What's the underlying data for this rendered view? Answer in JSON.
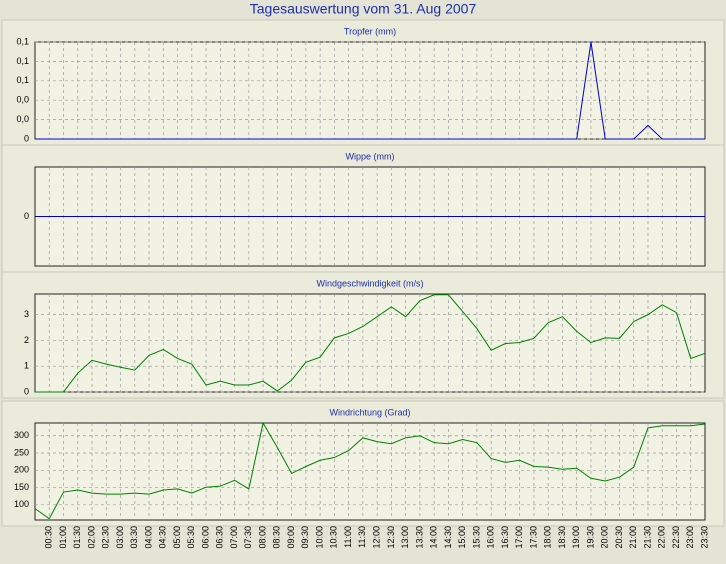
{
  "title": "Tagesauswertung vom 31. Aug 2007",
  "chart_data": [
    {
      "type": "line",
      "title": "Tropfer (mm)",
      "color": "#0000cc",
      "grid": true,
      "ylim": [
        0,
        0.1
      ],
      "yticks": [
        0,
        {
          "value": 0.02,
          "label": "0,0"
        },
        {
          "value": 0.04,
          "label": "0,0"
        },
        {
          "value": 0.06,
          "label": "0,1"
        },
        {
          "value": 0.08,
          "label": "0,1"
        },
        {
          "value": 0.1,
          "label": "0,1"
        }
      ],
      "values": [
        0,
        0,
        0,
        0,
        0,
        0,
        0,
        0,
        0,
        0,
        0,
        0,
        0,
        0,
        0,
        0,
        0,
        0,
        0,
        0,
        0,
        0,
        0,
        0,
        0,
        0,
        0,
        0,
        0,
        0,
        0,
        0,
        0,
        0,
        0,
        0,
        0,
        0,
        0,
        0.1,
        0,
        0,
        0,
        0.014,
        0,
        0,
        0,
        0
      ]
    },
    {
      "type": "line",
      "title": "Wippe (mm)",
      "color": "#0000cc",
      "grid": true,
      "ylim": [
        -1,
        1
      ],
      "yticks": [
        0
      ],
      "values": [
        0,
        0,
        0,
        0,
        0,
        0,
        0,
        0,
        0,
        0,
        0,
        0,
        0,
        0,
        0,
        0,
        0,
        0,
        0,
        0,
        0,
        0,
        0,
        0,
        0,
        0,
        0,
        0,
        0,
        0,
        0,
        0,
        0,
        0,
        0,
        0,
        0,
        0,
        0,
        0,
        0,
        0,
        0,
        0,
        0,
        0,
        0,
        0
      ]
    },
    {
      "type": "line",
      "title": "Windgeschwindigkeit (m/s)",
      "color": "#008000",
      "grid": true,
      "ylim": [
        0,
        3.8
      ],
      "yticks": [
        0,
        1,
        2,
        3
      ],
      "values": [
        0,
        0,
        0,
        0.73,
        1.23,
        1.08,
        0.96,
        0.85,
        1.42,
        1.65,
        1.3,
        1.08,
        0.27,
        0.42,
        0.27,
        0.27,
        0.42,
        0.04,
        0.46,
        1.15,
        1.35,
        2.1,
        2.27,
        2.54,
        2.92,
        3.3,
        2.92,
        3.54,
        3.77,
        3.77,
        3.12,
        2.46,
        1.62,
        1.88,
        1.92,
        2.08,
        2.69,
        2.92,
        2.35,
        1.92,
        2.1,
        2.08,
        2.73,
        3.0,
        3.38,
        3.08,
        1.3,
        1.5
      ]
    },
    {
      "type": "line",
      "title": "Windrichtung (Grad)",
      "color": "#008000",
      "grid": true,
      "ylim": [
        56,
        337
      ],
      "yticks": [
        100,
        150,
        200,
        250,
        300
      ],
      "categories": [
        null,
        "00:30",
        "01:00",
        "01:30",
        "02:00",
        "02:30",
        "03:00",
        "03:30",
        "04:00",
        "04:30",
        "05:00",
        "05:30",
        "06:00",
        "06:30",
        "07:00",
        "07:30",
        "08:00",
        "08:30",
        "09:00",
        "09:30",
        "10:00",
        "10:30",
        "11:00",
        "11:30",
        "12:00",
        "12:30",
        "13:00",
        "13:30",
        "14:00",
        "14:30",
        "15:00",
        "15:30",
        "16:00",
        "16:30",
        "17:00",
        "17:30",
        "18:00",
        "18:30",
        "19:00",
        "19:30",
        "20:00",
        "20:30",
        "21:00",
        "21:30",
        "22:00",
        "22:30",
        "23:00",
        "23:30"
      ],
      "values": [
        89,
        60,
        137,
        143,
        134,
        131,
        131,
        134,
        131,
        143,
        146,
        134,
        151,
        154,
        171,
        146,
        337,
        266,
        191,
        211,
        229,
        237,
        257,
        294,
        283,
        277,
        294,
        300,
        280,
        277,
        289,
        280,
        234,
        223,
        229,
        211,
        209,
        203,
        206,
        177,
        169,
        180,
        209,
        323,
        329,
        329,
        329,
        334
      ]
    }
  ]
}
